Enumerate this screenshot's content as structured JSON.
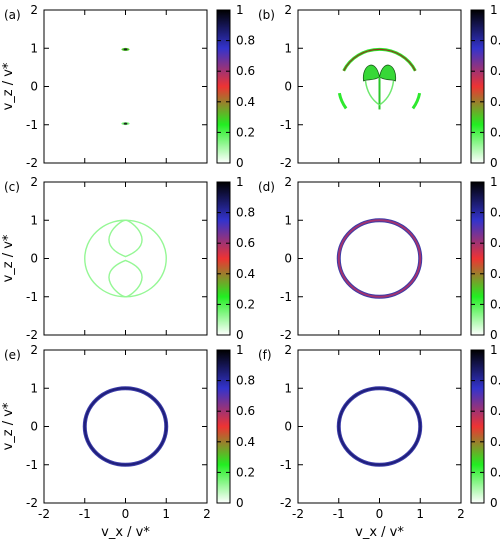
{
  "chart_data": {
    "type": "heatmap",
    "xlabel": "v_x / v*",
    "ylabel": "v_z / v*",
    "xlim": [
      -2,
      2
    ],
    "ylim": [
      -2,
      2
    ],
    "x_ticks": [
      "-2",
      "-1",
      "0",
      "1",
      "2"
    ],
    "y_ticks": [
      "-2",
      "-1",
      "0",
      "1",
      "2"
    ],
    "colorbar": {
      "range": [
        0,
        1
      ],
      "ticks": [
        "0",
        "0.2",
        "0.4",
        "0.6",
        "0.8",
        "1"
      ],
      "colors": [
        "#ffffff",
        "#22ee22",
        "#ee3333",
        "#3333cc",
        "#000000"
      ]
    },
    "panels": [
      {
        "label": "(a)",
        "features": [
          {
            "kind": "blob",
            "cx": 0.0,
            "cy": 0.97,
            "rx": 0.1,
            "ry": 0.025,
            "intensity": 0.3
          },
          {
            "kind": "blob",
            "cx": 0.0,
            "cy": -0.97,
            "rx": 0.1,
            "ry": 0.035,
            "intensity": 0.15
          }
        ]
      },
      {
        "label": "(b)",
        "features": [
          {
            "kind": "arc",
            "r": 0.97,
            "from_deg": 25,
            "to_deg": 155,
            "intensity": 0.3
          },
          {
            "kind": "arc",
            "r": 1.0,
            "from_deg": 190,
            "to_deg": 215,
            "intensity": 0.15
          },
          {
            "kind": "arc",
            "r": 1.0,
            "from_deg": 325,
            "to_deg": 350,
            "intensity": 0.15
          },
          {
            "kind": "fan",
            "cx": 0.0,
            "cy": 0.25,
            "intensity": 0.2
          }
        ]
      },
      {
        "label": "(c)",
        "features": [
          {
            "kind": "circle",
            "r": 1.0,
            "intensity": 0.12
          },
          {
            "kind": "lobes",
            "intensity": 0.12
          }
        ]
      },
      {
        "label": "(d)",
        "features": [
          {
            "kind": "circle",
            "r": 1.0,
            "intensity": 0.6
          }
        ]
      },
      {
        "label": "(e)",
        "features": [
          {
            "kind": "circle",
            "r": 1.0,
            "intensity": 0.85
          }
        ]
      },
      {
        "label": "(f)",
        "features": [
          {
            "kind": "circle",
            "r": 1.0,
            "intensity": 0.85
          }
        ]
      }
    ]
  }
}
